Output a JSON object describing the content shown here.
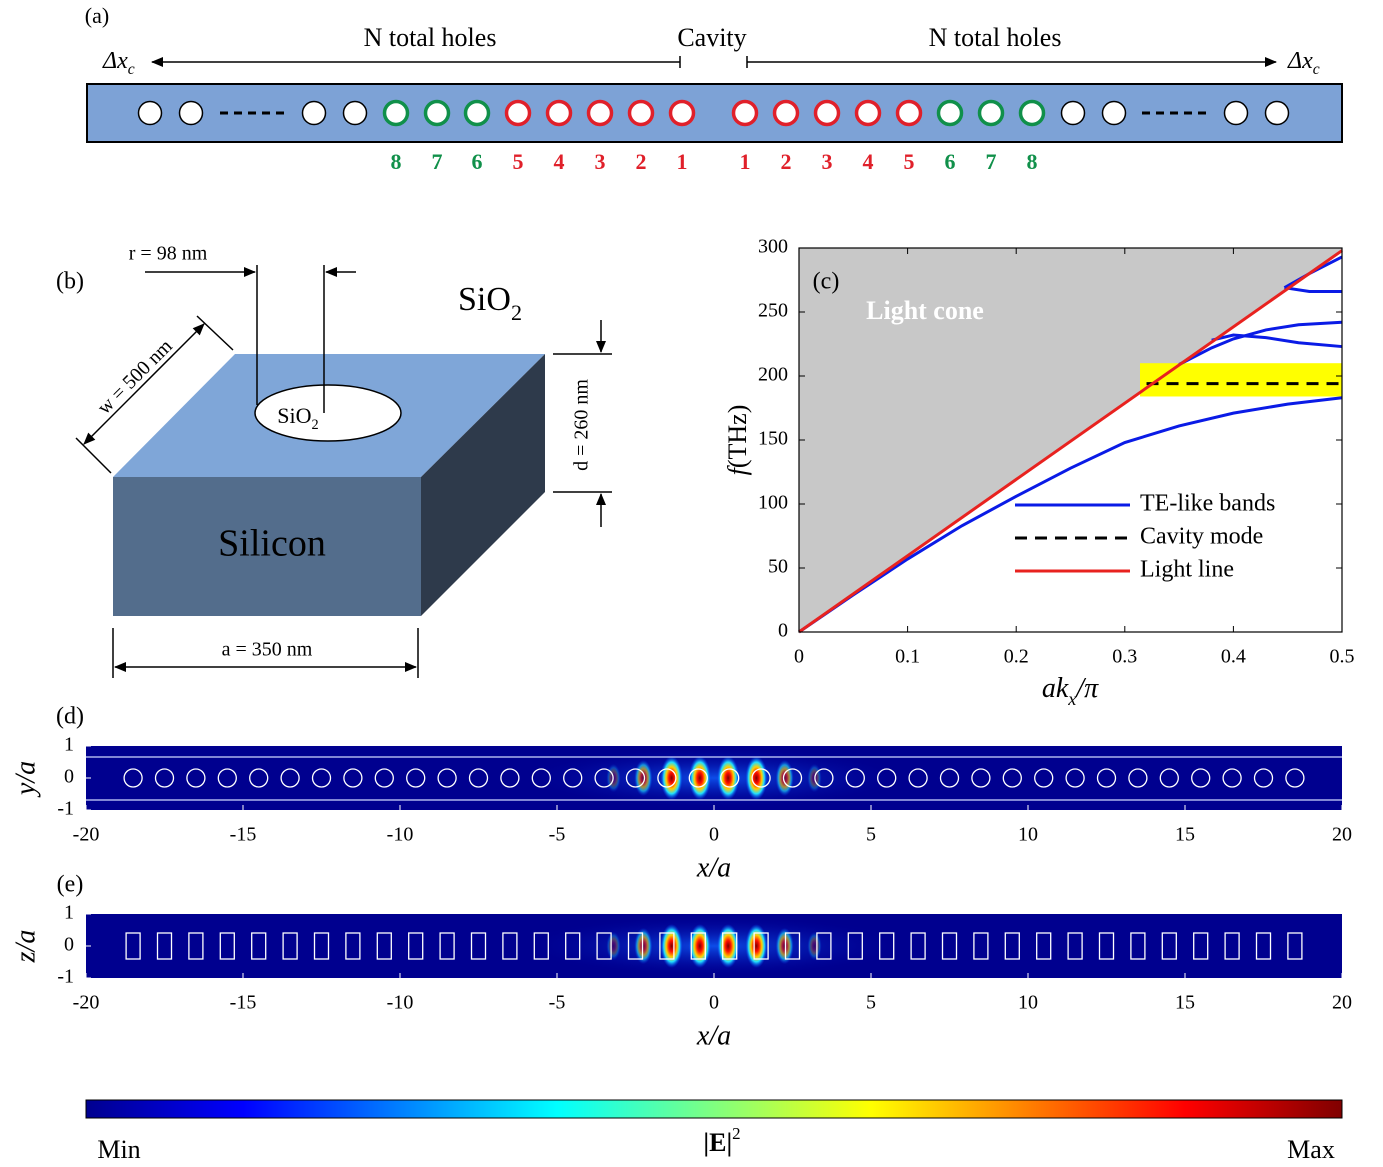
{
  "figure": {
    "panel_a": {
      "label": "(a)",
      "left_shift": "Δx",
      "left_shift_sub": "c",
      "left_span": "N total holes",
      "center": "Cavity",
      "right_span": "N total holes",
      "right_shift": "Δx",
      "right_shift_sub": "c",
      "left_numbers": [
        8,
        7,
        6,
        5,
        4,
        3,
        2,
        1
      ],
      "right_numbers": [
        1,
        2,
        3,
        4,
        5,
        6,
        7,
        8
      ]
    },
    "panel_b": {
      "label": "(b)",
      "radius": "r = 98 nm",
      "width": "w = 500 nm",
      "thickness": "d = 260 nm",
      "period": "a = 350 nm",
      "hole_material": "SiO",
      "hole_material_sub": "2",
      "cladding": "SiO",
      "cladding_sub": "2",
      "core": "Silicon"
    },
    "panel_d": {
      "label": "(d)",
      "xlabel": "x/a",
      "ylabel": "y/a",
      "xlim": [
        -20,
        20
      ],
      "ylim": [
        -1,
        1
      ],
      "xticks": [
        -20,
        -15,
        -10,
        -5,
        0,
        5,
        10,
        15,
        20
      ],
      "yticks": [
        -1,
        0,
        1
      ]
    },
    "panel_e": {
      "label": "(e)",
      "xlabel": "x/a",
      "ylabel": "z/a",
      "xlim": [
        -20,
        20
      ],
      "ylim": [
        -1,
        1
      ],
      "xticks": [
        -20,
        -15,
        -10,
        -5,
        0,
        5,
        10,
        15,
        20
      ],
      "yticks": [
        -1,
        0,
        1
      ]
    },
    "colorbar": {
      "min_label": "Min",
      "title": "|E|",
      "title_sup": "2",
      "max_label": "Max"
    }
  },
  "chart_data": {
    "type": "line",
    "label": "(c)",
    "annotation": "Light cone",
    "xlabel": "ak",
    "xlabel_sub": "x",
    "xlabel_tail": "/π",
    "ylabel_symbol": "f",
    "ylabel": "(THz)",
    "xlim": [
      0,
      0.5
    ],
    "ylim": [
      0,
      300
    ],
    "xticks": [
      0,
      0.1,
      0.2,
      0.3,
      0.4,
      0.5
    ],
    "yticks": [
      0,
      50,
      100,
      150,
      200,
      250,
      300
    ],
    "legend": "lower right",
    "band": {
      "x": [
        0.314,
        0.5
      ],
      "y": [
        184,
        210
      ],
      "color": "#ffff00"
    },
    "series": [
      {
        "name": "TE-like bands",
        "color": "#0a1be6",
        "curves": [
          {
            "x": [
              0,
              0.05,
              0.1,
              0.15,
              0.2,
              0.25,
              0.3,
              0.35,
              0.4,
              0.45,
              0.5
            ],
            "y": [
              0,
              29,
              57,
              83,
              106,
              128,
              148,
              161,
              171,
              178,
              183
            ]
          },
          {
            "x": [
              0.35,
              0.38,
              0.4,
              0.43,
              0.46,
              0.5
            ],
            "y": [
              209,
              222,
              229,
              236,
              240,
              242
            ]
          },
          {
            "x": [
              0.38,
              0.4,
              0.43,
              0.46,
              0.5
            ],
            "y": [
              228,
              232,
              230,
              226,
              223
            ]
          },
          {
            "x": [
              0.447,
              0.47,
              0.5
            ],
            "y": [
              269,
              266,
              266
            ]
          },
          {
            "x": [
              0.447,
              0.47,
              0.5
            ],
            "y": [
              269,
              280,
              293
            ]
          }
        ]
      },
      {
        "name": "Cavity mode",
        "color": "#000000",
        "dashed": true,
        "x": [
          0.32,
          0.5
        ],
        "y": [
          194,
          194
        ]
      },
      {
        "name": "Light line",
        "color": "#e8221f",
        "x": [
          0,
          0.5
        ],
        "y": [
          0,
          298
        ]
      }
    ]
  }
}
